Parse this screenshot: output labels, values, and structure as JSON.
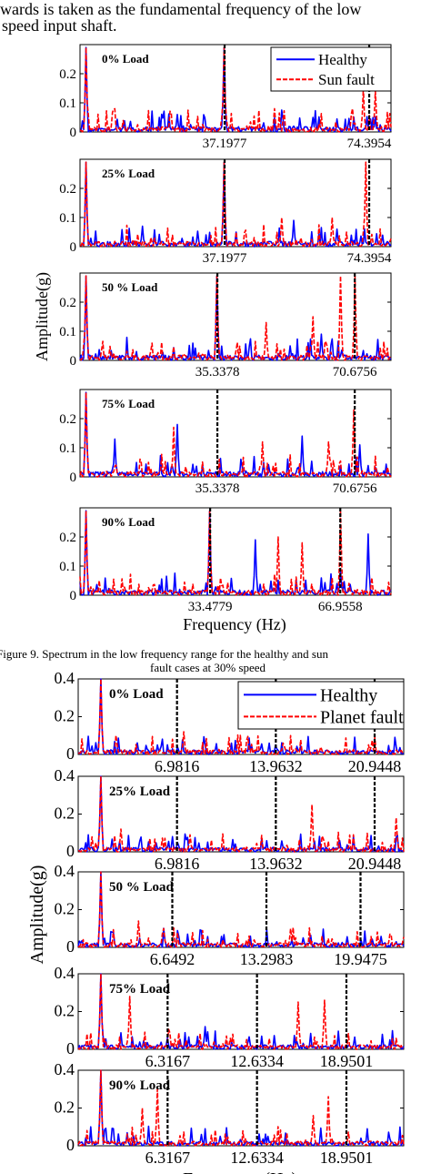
{
  "intro": {
    "line1": "wards is taken as the fundamental frequency of the low",
    "line2": "speed input shaft."
  },
  "figure9_caption": {
    "line1": "Figure 9.     Spectrum in the low frequency range for the healthy and sun",
    "line2": "fault cases at 30% speed"
  },
  "chart_data": [
    {
      "type": "line",
      "figure": "top",
      "ylabel": "Amplitude(g)",
      "xlabel": "Frequency (Hz)",
      "legend": {
        "placement": "top-right",
        "entries": [
          "Healthy",
          "Sun fault"
        ]
      },
      "series_styles": {
        "Healthy": {
          "color": "#0000ff",
          "dash": "solid"
        },
        "Sun fault": {
          "color": "#ff0000",
          "dash": "dashed"
        }
      },
      "marker_color": "#000000",
      "yticks": [
        "0",
        "0.1",
        "0.2"
      ],
      "ylim": [
        0,
        0.3
      ],
      "xlim": [
        0,
        80
      ],
      "panels": [
        {
          "label": "0% Load",
          "markers": [
            37.1977,
            74.3954
          ],
          "xtick_labels": [
            "37.1977",
            "74.3954"
          ],
          "peaks": {
            "Healthy": [
              [
                1.5,
                0.29
              ],
              [
                37.2,
                0.29
              ],
              [
                25,
                0.06
              ],
              [
                60,
                0.05
              ],
              [
                74.4,
                0.04
              ]
            ],
            "Sun fault": [
              [
                1.5,
                0.29
              ],
              [
                37.2,
                0.29
              ],
              [
                50,
                0.08
              ],
              [
                70,
                0.08
              ],
              [
                73,
                0.15
              ],
              [
                76,
                0.14
              ]
            ]
          }
        },
        {
          "label": "25% Load",
          "markers": [
            37.1977,
            74.3954
          ],
          "xtick_labels": [
            "37.1977",
            "74.3954"
          ],
          "peaks": {
            "Healthy": [
              [
                1.5,
                0.29
              ],
              [
                37.2,
                0.29
              ],
              [
                16,
                0.07
              ],
              [
                55,
                0.09
              ],
              [
                66,
                0.06
              ]
            ],
            "Sun fault": [
              [
                1.5,
                0.29
              ],
              [
                37.2,
                0.29
              ],
              [
                52,
                0.1
              ],
              [
                73.5,
                0.29
              ],
              [
                65,
                0.1
              ]
            ]
          }
        },
        {
          "label": "50 % Load",
          "markers": [
            35.3378,
            70.6756
          ],
          "xtick_labels": [
            "35.3378",
            "70.6756"
          ],
          "peaks": {
            "Healthy": [
              [
                1.5,
                0.29
              ],
              [
                35.3,
                0.29
              ],
              [
                54,
                0.05
              ],
              [
                62,
                0.09
              ]
            ],
            "Sun fault": [
              [
                1.5,
                0.29
              ],
              [
                35.3,
                0.29
              ],
              [
                70.7,
                0.29
              ],
              [
                60,
                0.15
              ],
              [
                67,
                0.29
              ],
              [
                48,
                0.13
              ]
            ]
          }
        },
        {
          "label": "75% Load",
          "markers": [
            35.3378,
            70.6756
          ],
          "xtick_labels": [
            "35.3378",
            "70.6756"
          ],
          "peaks": {
            "Healthy": [
              [
                1.5,
                0.29
              ],
              [
                25,
                0.18
              ],
              [
                9,
                0.13
              ],
              [
                57,
                0.14
              ],
              [
                72,
                0.11
              ]
            ],
            "Sun fault": [
              [
                1.5,
                0.29
              ],
              [
                24,
                0.17
              ],
              [
                47,
                0.12
              ],
              [
                70.5,
                0.23
              ],
              [
                64,
                0.12
              ]
            ]
          }
        },
        {
          "label": "90% Load",
          "markers": [
            33.4779,
            66.9558
          ],
          "xtick_labels": [
            "33.4779",
            "66.9558"
          ],
          "peaks": {
            "Healthy": [
              [
                1.5,
                0.29
              ],
              [
                33.5,
                0.29
              ],
              [
                45,
                0.19
              ],
              [
                74,
                0.21
              ],
              [
                66.9,
                0.08
              ]
            ],
            "Sun fault": [
              [
                1.5,
                0.29
              ],
              [
                33.5,
                0.29
              ],
              [
                51,
                0.2
              ],
              [
                67,
                0.29
              ],
              [
                57,
                0.18
              ],
              [
                75,
                0.06
              ]
            ]
          }
        }
      ]
    },
    {
      "type": "line",
      "figure": "bottom",
      "ylabel": "Amplitude(g)",
      "xlabel": "Frequency (Hz)",
      "legend": {
        "placement": "top-right",
        "entries": [
          "Healthy",
          "Planet fault"
        ]
      },
      "series_styles": {
        "Healthy": {
          "color": "#0000ff",
          "dash": "solid"
        },
        "Planet fault": {
          "color": "#ff0000",
          "dash": "dashed"
        }
      },
      "marker_color": "#000000",
      "yticks": [
        "0",
        "0.2",
        "0.4"
      ],
      "ylim": [
        0,
        0.4
      ],
      "xlim": [
        0,
        23
      ],
      "panels": [
        {
          "label": "0% Load",
          "markers": [
            6.9816,
            13.9632,
            20.9448
          ],
          "xtick_labels": [
            "6.9816",
            "13.9632",
            "20.9448"
          ],
          "peaks": {
            "Healthy": [
              [
                1.6,
                0.4
              ],
              [
                7,
                0.04
              ],
              [
                14,
                0.03
              ]
            ],
            "Planet fault": [
              [
                1.6,
                0.4
              ],
              [
                7.5,
                0.12
              ],
              [
                14.5,
                0.06
              ],
              [
                21,
                0.05
              ]
            ]
          }
        },
        {
          "label": "25% Load",
          "markers": [
            6.9816,
            13.9632,
            20.9448
          ],
          "xtick_labels": [
            "6.9816",
            "13.9632",
            "20.9448"
          ],
          "peaks": {
            "Healthy": [
              [
                1.6,
                0.4
              ],
              [
                18.5,
                0.06
              ],
              [
                7,
                0.05
              ]
            ],
            "Planet fault": [
              [
                1.6,
                0.4
              ],
              [
                3,
                0.12
              ],
              [
                7.9,
                0.09
              ],
              [
                16.5,
                0.25
              ],
              [
                22.5,
                0.18
              ]
            ]
          }
        },
        {
          "label": "50 % Load",
          "markers": [
            6.6492,
            13.2983,
            19.9475
          ],
          "xtick_labels": [
            "6.6492",
            "13.2983",
            "19.9475"
          ],
          "peaks": {
            "Healthy": [
              [
                1.6,
                0.4
              ],
              [
                14,
                0.03
              ],
              [
                20,
                0.04
              ]
            ],
            "Planet fault": [
              [
                1.6,
                0.4
              ],
              [
                4.3,
                0.14
              ],
              [
                6,
                0.1
              ],
              [
                15,
                0.1
              ],
              [
                22,
                0.07
              ]
            ]
          }
        },
        {
          "label": "75% Load",
          "markers": [
            6.3167,
            12.6334,
            18.9501
          ],
          "xtick_labels": [
            "6.3167",
            "12.6334",
            "18.9501"
          ],
          "peaks": {
            "Healthy": [
              [
                1.6,
                0.4
              ],
              [
                9,
                0.12
              ],
              [
                6.3,
                0.06
              ]
            ],
            "Planet fault": [
              [
                1.6,
                0.4
              ],
              [
                3.6,
                0.28
              ],
              [
                15.5,
                0.25
              ],
              [
                17.4,
                0.26
              ],
              [
                6.4,
                0.1
              ]
            ]
          }
        },
        {
          "label": "90% Load",
          "markers": [
            6.3167,
            12.6334,
            18.9501
          ],
          "xtick_labels": [
            "6.3167",
            "12.6334",
            "18.9501"
          ],
          "peaks": {
            "Healthy": [
              [
                1.6,
                0.4
              ],
              [
                10,
                0.05
              ],
              [
                13.4,
                0.05
              ]
            ],
            "Planet fault": [
              [
                1.6,
                0.4
              ],
              [
                4.5,
                0.2
              ],
              [
                5.6,
                0.3
              ],
              [
                17.7,
                0.26
              ],
              [
                16.6,
                0.16
              ]
            ]
          }
        }
      ]
    }
  ]
}
